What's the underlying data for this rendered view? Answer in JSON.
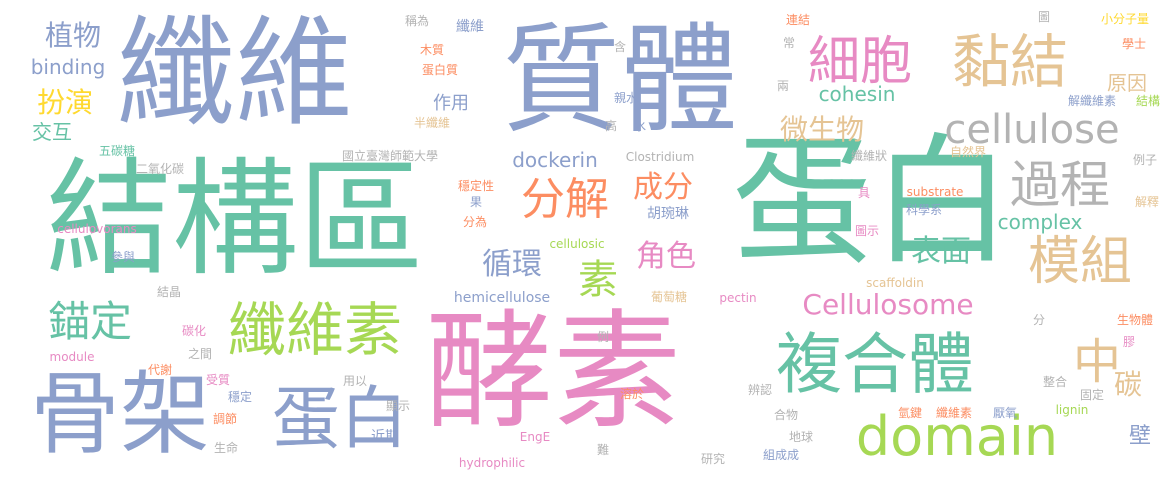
{
  "palette": {
    "blue": "#8C9FCB",
    "teal": "#66C2A5",
    "orange": "#FC8D62",
    "pink": "#E78AC3",
    "lime": "#A6D854",
    "yellow": "#FFD92F",
    "tan": "#E5C494",
    "grey": "#B3B3B3"
  },
  "words": [
    {
      "text": "酵素",
      "color": "pink"
    },
    {
      "text": "蛋白",
      "color": "teal"
    },
    {
      "text": "結構區",
      "color": "teal"
    },
    {
      "text": "纖維",
      "color": "blue"
    },
    {
      "text": "質體",
      "color": "blue"
    },
    {
      "text": "骨架",
      "color": "blue"
    },
    {
      "text": "蛋白",
      "color": "blue"
    },
    {
      "text": "複合體",
      "color": "teal"
    },
    {
      "text": "纖維素",
      "color": "lime"
    },
    {
      "text": "細胞",
      "color": "pink"
    },
    {
      "text": "黏結",
      "color": "tan"
    },
    {
      "text": "domain",
      "color": "lime"
    },
    {
      "text": "cellulose",
      "color": "grey"
    },
    {
      "text": "分解",
      "color": "orange"
    },
    {
      "text": "模組",
      "color": "tan"
    },
    {
      "text": "過程",
      "color": "grey"
    },
    {
      "text": "錨定",
      "color": "teal"
    },
    {
      "text": "中",
      "color": "tan"
    },
    {
      "text": "Cellulosome",
      "color": "pink"
    },
    {
      "text": "素",
      "color": "lime"
    },
    {
      "text": "循環",
      "color": "blue"
    },
    {
      "text": "微生物",
      "color": "tan"
    },
    {
      "text": "表面",
      "color": "teal"
    },
    {
      "text": "角色",
      "color": "pink"
    },
    {
      "text": "成分",
      "color": "orange"
    },
    {
      "text": "碳",
      "color": "tan"
    },
    {
      "text": "cohesin",
      "color": "teal"
    },
    {
      "text": "complex",
      "color": "teal"
    },
    {
      "text": "dockerin",
      "color": "blue"
    },
    {
      "text": "植物",
      "color": "blue"
    },
    {
      "text": "扮演",
      "color": "yellow"
    },
    {
      "text": "binding",
      "color": "blue"
    },
    {
      "text": "原因",
      "color": "tan"
    },
    {
      "text": "作用",
      "color": "blue"
    },
    {
      "text": "交互",
      "color": "teal"
    },
    {
      "text": "壁",
      "color": "blue"
    },
    {
      "text": "二氧化碳",
      "color": "grey"
    },
    {
      "text": "五碳糖",
      "color": "teal"
    },
    {
      "text": "國立臺灣師範大學",
      "color": "grey"
    },
    {
      "text": "Clostridium",
      "color": "grey"
    },
    {
      "text": "substrate",
      "color": "orange"
    },
    {
      "text": "scaffoldin",
      "color": "tan"
    },
    {
      "text": "hemicellulose",
      "color": "blue"
    },
    {
      "text": "pectin",
      "color": "pink"
    },
    {
      "text": "cellulovorans",
      "color": "pink"
    },
    {
      "text": "cellulosic",
      "color": "lime"
    },
    {
      "text": "module",
      "color": "pink"
    },
    {
      "text": "lignin",
      "color": "lime"
    },
    {
      "text": "hydrophilic",
      "color": "pink"
    },
    {
      "text": "EngE",
      "color": "pink"
    },
    {
      "text": "胡琬琳",
      "color": "blue"
    },
    {
      "text": "科學系",
      "color": "blue"
    },
    {
      "text": "葡萄糖",
      "color": "tan"
    },
    {
      "text": "穩定性",
      "color": "orange"
    },
    {
      "text": "纖維狀",
      "color": "grey"
    },
    {
      "text": "自然界",
      "color": "tan"
    },
    {
      "text": "例子",
      "color": "grey"
    },
    {
      "text": "解釋",
      "color": "tan"
    },
    {
      "text": "解纖維素",
      "color": "blue"
    },
    {
      "text": "結構",
      "color": "lime"
    },
    {
      "text": "學士",
      "color": "orange"
    },
    {
      "text": "小分子量",
      "color": "yellow"
    },
    {
      "text": "連結",
      "color": "orange"
    },
    {
      "text": "圖",
      "color": "grey"
    },
    {
      "text": "圖示",
      "color": "pink"
    },
    {
      "text": "生物體",
      "color": "orange"
    },
    {
      "text": "膠",
      "color": "pink"
    },
    {
      "text": "整合",
      "color": "grey"
    },
    {
      "text": "固定",
      "color": "grey"
    },
    {
      "text": "氫鍵",
      "color": "orange"
    },
    {
      "text": "纖維素",
      "color": "orange"
    },
    {
      "text": "厭氧",
      "color": "blue"
    },
    {
      "text": "地球",
      "color": "grey"
    },
    {
      "text": "組成成",
      "color": "blue"
    },
    {
      "text": "合物",
      "color": "grey"
    },
    {
      "text": "研究",
      "color": "grey"
    },
    {
      "text": "辨認",
      "color": "grey"
    },
    {
      "text": "溶於",
      "color": "orange"
    },
    {
      "text": "難",
      "color": "grey"
    },
    {
      "text": "近期",
      "color": "blue"
    },
    {
      "text": "顯示",
      "color": "grey"
    },
    {
      "text": "用以",
      "color": "grey"
    },
    {
      "text": "受質",
      "color": "pink"
    },
    {
      "text": "調節",
      "color": "orange"
    },
    {
      "text": "生命",
      "color": "grey"
    },
    {
      "text": "代謝",
      "color": "orange"
    },
    {
      "text": "穩定",
      "color": "blue"
    },
    {
      "text": "之間",
      "color": "grey"
    },
    {
      "text": "碳化",
      "color": "pink"
    },
    {
      "text": "結晶",
      "color": "grey"
    },
    {
      "text": "參與",
      "color": "blue"
    },
    {
      "text": "分為",
      "color": "orange"
    },
    {
      "text": "果",
      "color": "blue"
    },
    {
      "text": "稱為",
      "color": "grey"
    },
    {
      "text": "木質",
      "color": "orange"
    },
    {
      "text": "蛋白質",
      "color": "orange"
    },
    {
      "text": "半纖維",
      "color": "tan"
    },
    {
      "text": "纖維",
      "color": "blue"
    },
    {
      "text": "含",
      "color": "grey"
    },
    {
      "text": "親水",
      "color": "blue"
    },
    {
      "text": "水",
      "color": "blue"
    },
    {
      "text": "高",
      "color": "grey"
    },
    {
      "text": "常",
      "color": "grey"
    },
    {
      "text": "兩",
      "color": "grey"
    },
    {
      "text": "具",
      "color": "pink"
    },
    {
      "text": "分",
      "color": "grey"
    },
    {
      "text": "例",
      "color": "grey"
    }
  ]
}
